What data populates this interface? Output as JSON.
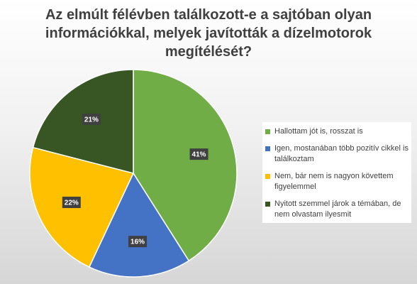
{
  "chart_data": {
    "type": "pie",
    "title": "Az elmúlt félévben találkozott-e a sajtóban olyan információkkal, melyek javították a dízelmotorok megítélését?",
    "categories": [
      "Hallottam jót is, rosszat is",
      "Igen, mostanában több pozitív cikkel is találkoztam",
      "Nem, bár nem is nagyon követtem figyelemmel",
      "Nyitott szemmel járok a témában, de nem olvastam ilyesmit"
    ],
    "values": [
      41,
      16,
      22,
      21
    ],
    "labels": [
      "41%",
      "16%",
      "22%",
      "21%"
    ],
    "colors": [
      "#70ad47",
      "#4472c4",
      "#ffc000",
      "#375623"
    ],
    "legend_position": "right"
  }
}
